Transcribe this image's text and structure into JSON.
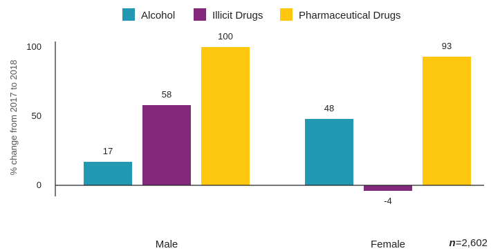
{
  "chart_data": {
    "type": "bar",
    "categories": [
      "Male",
      "Female"
    ],
    "series": [
      {
        "name": "Alcohol",
        "color": "#2398b3",
        "values": [
          17,
          48
        ]
      },
      {
        "name": "Illicit Drugs",
        "color": "#84287c",
        "values": [
          58,
          -4
        ]
      },
      {
        "name": "Pharmaceutical Drugs",
        "color": "#fdc70d",
        "values": [
          100,
          93
        ]
      }
    ],
    "ylabel": "% change from 2017 to 2018",
    "yticks": [
      0,
      50,
      100
    ],
    "ylim": [
      -8,
      104
    ],
    "legend_position": "top",
    "grid": false
  },
  "note": {
    "n_label": "n",
    "value": "=2,602"
  }
}
